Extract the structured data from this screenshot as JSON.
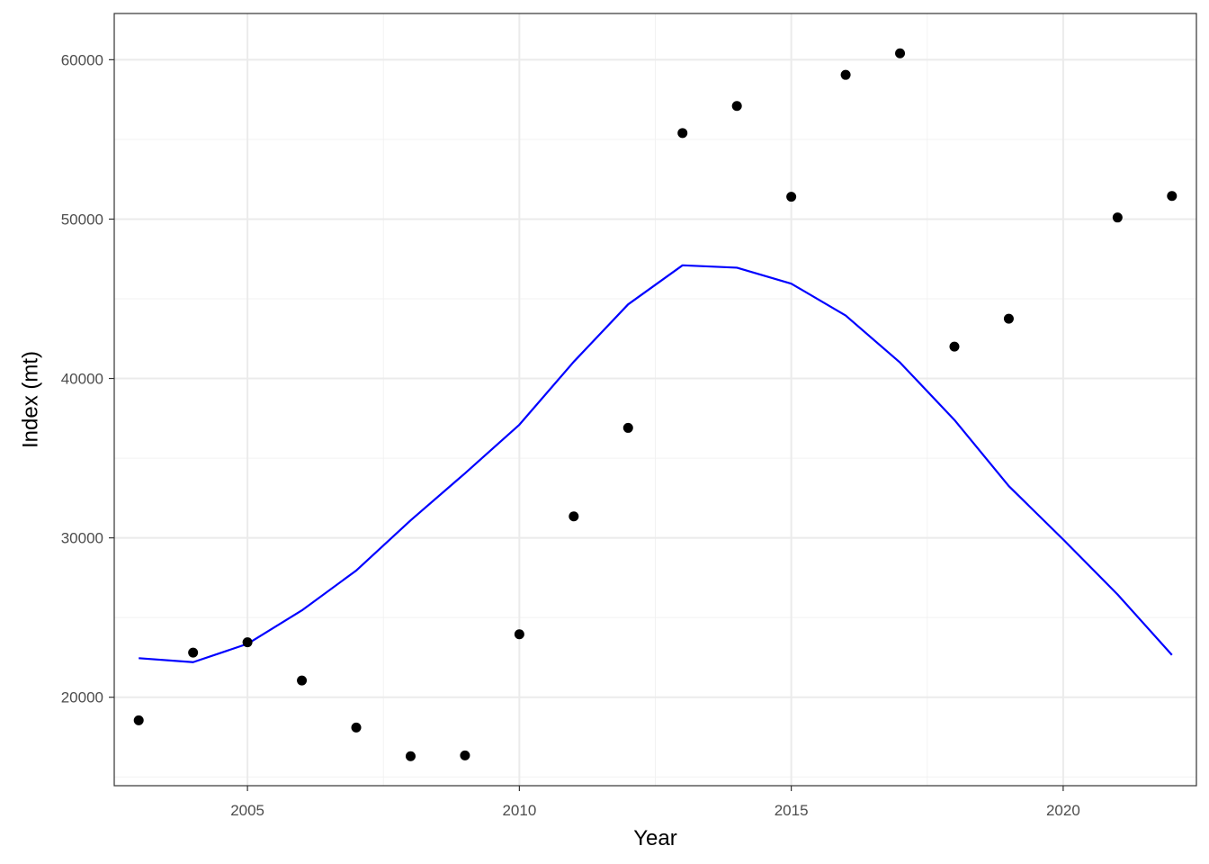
{
  "chart_data": {
    "type": "scatter",
    "xlabel": "Year",
    "ylabel": "Index (mt)",
    "xlim": [
      2002.55,
      2022.45
    ],
    "ylim": [
      14450,
      62900
    ],
    "x_ticks": [
      2005,
      2010,
      2015,
      2020
    ],
    "x_tick_labels": [
      "2005",
      "2010",
      "2015",
      "2020"
    ],
    "y_ticks": [
      20000,
      30000,
      40000,
      50000,
      60000
    ],
    "y_tick_labels": [
      "20000",
      "30000",
      "40000",
      "50000",
      "60000"
    ],
    "grid": true,
    "legend": "none",
    "series": [
      {
        "kind": "points",
        "color": "#000000",
        "x": [
          2003,
          2004,
          2005,
          2006,
          2007,
          2008,
          2009,
          2010,
          2011,
          2012,
          2013,
          2014,
          2015,
          2016,
          2017,
          2018,
          2019,
          2021,
          2022
        ],
        "y": [
          18550,
          22800,
          23450,
          21050,
          18100,
          16300,
          16350,
          23950,
          31350,
          36900,
          55400,
          57100,
          51400,
          59050,
          60400,
          42000,
          43750,
          50100,
          51450
        ]
      },
      {
        "kind": "line",
        "color": "#0000ff",
        "x": [
          2003,
          2004,
          2005,
          2006,
          2007,
          2008,
          2009,
          2010,
          2011,
          2012,
          2013,
          2014,
          2015,
          2016,
          2017,
          2018,
          2019,
          2020,
          2021,
          2022
        ],
        "y": [
          22450,
          22200,
          23350,
          25450,
          27950,
          31100,
          34050,
          37100,
          41050,
          44650,
          47100,
          46950,
          45950,
          43950,
          41000,
          37400,
          33250,
          29900,
          26450,
          22650
        ]
      }
    ]
  }
}
